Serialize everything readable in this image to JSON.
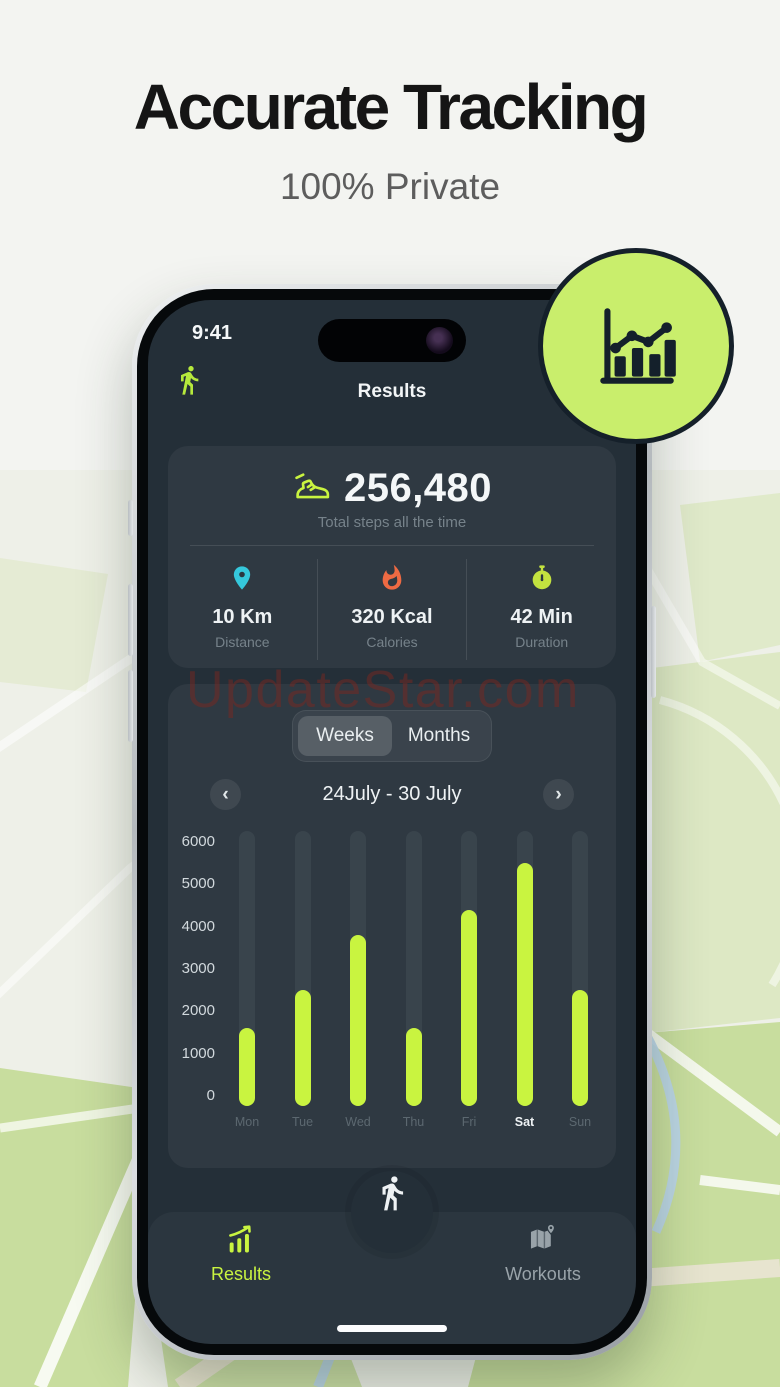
{
  "hero": {
    "title": "Accurate Tracking",
    "subtitle": "100% Private"
  },
  "watermark": "UpdateStar.com",
  "status_bar": {
    "time": "9:41"
  },
  "header": {
    "title": "Results",
    "app_icon": "walking-person-icon"
  },
  "steps_card": {
    "icon": "sneaker-icon",
    "total_steps": "256,480",
    "caption": "Total steps all the time",
    "stats": [
      {
        "icon": "location-pin-icon",
        "value": "10 Km",
        "label": "Distance",
        "color": "#35c8dc"
      },
      {
        "icon": "flame-icon",
        "value": "320 Kcal",
        "label": "Calories",
        "color": "#ee6a43"
      },
      {
        "icon": "stopwatch-icon",
        "value": "42 Min",
        "label": "Duration",
        "color": "#c3e23f"
      }
    ]
  },
  "chart_card": {
    "toggle": {
      "options": [
        "Weeks",
        "Months"
      ],
      "selected": "Weeks"
    },
    "prev_label": "‹",
    "next_label": "›",
    "date_range": "24July - 30 July"
  },
  "chart_data": {
    "type": "bar",
    "title": "",
    "xlabel": "",
    "ylabel": "",
    "categories": [
      "Mon",
      "Tue",
      "Wed",
      "Thu",
      "Fri",
      "Sat",
      "Sun"
    ],
    "values": [
      1600,
      2500,
      3800,
      1600,
      4400,
      5500,
      2500
    ],
    "highlighted_category": "Sat",
    "y_ticks": [
      6000,
      5000,
      4000,
      3000,
      2000,
      1000,
      0
    ],
    "ylim": [
      0,
      6000
    ],
    "grid": false,
    "legend_position": "none",
    "bar_color": "#c9f440",
    "track_color": "#39444c"
  },
  "bottom_nav": {
    "center_icon": "walking-person-icon",
    "items": [
      {
        "label": "Results",
        "icon": "results-chart-icon",
        "active": true
      },
      {
        "label": "Workouts",
        "icon": "workouts-map-icon",
        "active": false
      }
    ]
  },
  "badge": {
    "icon": "analytics-chart-icon"
  },
  "colors": {
    "accent_green": "#c9f440",
    "badge_green": "#c9ee6c",
    "screen_bg": "#242f38",
    "card_bg": "#2d3942",
    "distance_cyan": "#35c8dc",
    "calories_orange": "#ee6a43",
    "duration_lime": "#c3e23f",
    "map_green": "#cfe2a6",
    "watermark_red": "#7d2820"
  }
}
